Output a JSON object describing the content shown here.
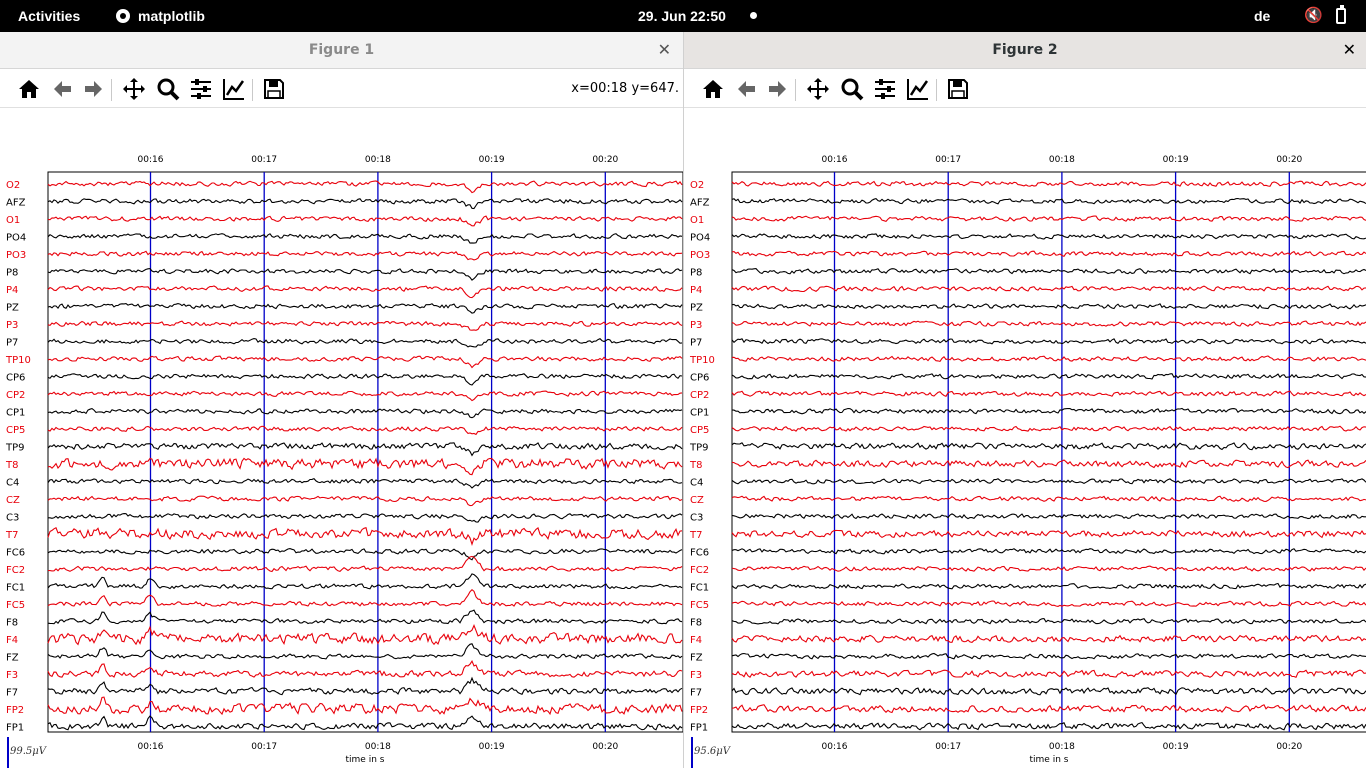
{
  "topbar": {
    "activities": "Activities",
    "app_name": "matplotlib",
    "clock": "29. Jun  22:50",
    "lang": "de"
  },
  "windows": [
    {
      "title": "Figure 1",
      "coords": "x=00:18 y=647.",
      "scale_label": "99.5μV",
      "xlabel": "time in s",
      "ticks": [
        "00:16",
        "00:17",
        "00:18",
        "00:19",
        "00:20"
      ],
      "artifact": true
    },
    {
      "title": "Figure 2",
      "coords": "",
      "scale_label": "95.6μV",
      "xlabel": "time in s",
      "ticks": [
        "00:16",
        "00:17",
        "00:18",
        "00:19",
        "00:20"
      ],
      "artifact": false
    }
  ],
  "channels": [
    "O2",
    "AFZ",
    "O1",
    "PO4",
    "PO3",
    "P8",
    "P4",
    "PZ",
    "P3",
    "P7",
    "TP10",
    "CP6",
    "CP2",
    "CP1",
    "CP5",
    "TP9",
    "T8",
    "C4",
    "CZ",
    "C3",
    "T7",
    "FC6",
    "FC2",
    "FC1",
    "FC5",
    "F8",
    "F4",
    "FZ",
    "F3",
    "F7",
    "FP2",
    "FP1"
  ],
  "colors": {
    "red": "#e8000b",
    "black": "#000000",
    "grid": "#0000c8"
  },
  "icons": [
    "home-icon",
    "back-arrow-icon",
    "forward-arrow-icon",
    "pan-icon",
    "zoom-icon",
    "configure-subplots-icon",
    "edit-axis-icon",
    "save-icon"
  ]
}
